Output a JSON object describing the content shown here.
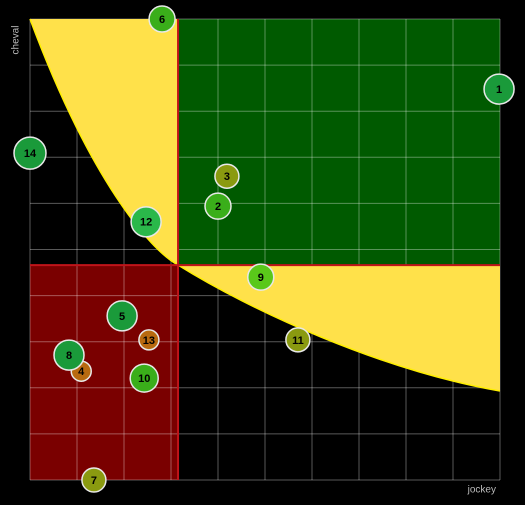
{
  "chart_data": {
    "type": "scatter",
    "x_label": "jockey",
    "y_label": "cheval",
    "xlim": [
      0,
      10
    ],
    "ylim": [
      0,
      10
    ],
    "xticks": [
      0,
      1,
      2,
      3,
      4,
      5,
      6,
      7,
      8,
      9,
      10
    ],
    "yticks": [
      0,
      1,
      2,
      3,
      4,
      5,
      6,
      7,
      8,
      9,
      10
    ],
    "grid": true,
    "x_split": 3.15,
    "y_split": 4.66,
    "top_right_color": "#005a00",
    "bottom_left_color": "#7a0000",
    "split_color": "#c0141a",
    "points": [
      {
        "label": "1",
        "x": 9.98,
        "y": 8.48,
        "size": 15,
        "color": "#1a9a3a"
      },
      {
        "label": "2",
        "x": 4.0,
        "y": 5.94,
        "size": 13,
        "color": "#3aae1a"
      },
      {
        "label": "3",
        "x": 4.19,
        "y": 6.59,
        "size": 12,
        "color": "#8a9a10"
      },
      {
        "label": "4",
        "x": 1.09,
        "y": 2.36,
        "size": 10,
        "color": "#b86a10"
      },
      {
        "label": "5",
        "x": 1.96,
        "y": 3.56,
        "size": 15,
        "color": "#1a9a3a"
      },
      {
        "label": "6",
        "x": 2.81,
        "y": 10.0,
        "size": 13,
        "color": "#3aae1a"
      },
      {
        "label": "7",
        "x": 1.36,
        "y": 0,
        "size": 12,
        "color": "#8a9a10"
      },
      {
        "label": "8",
        "x": 0.83,
        "y": 2.71,
        "size": 15,
        "color": "#1a9a3a"
      },
      {
        "label": "9",
        "x": 4.91,
        "y": 4.4,
        "size": 13,
        "color": "#5ac81a"
      },
      {
        "label": "10",
        "x": 2.43,
        "y": 2.21,
        "size": 14,
        "color": "#3aae1a"
      },
      {
        "label": "11",
        "x": 5.7,
        "y": 3.04,
        "size": 12,
        "color": "#8a9a10"
      },
      {
        "label": "12",
        "x": 2.47,
        "y": 5.6,
        "size": 15,
        "color": "#2ab84a"
      },
      {
        "label": "13",
        "x": 2.53,
        "y": 3.04,
        "size": 10,
        "color": "#b86a10"
      },
      {
        "label": "14",
        "x": 0,
        "y": 7.09,
        "size": 16,
        "color": "#1a9a3a"
      }
    ]
  }
}
